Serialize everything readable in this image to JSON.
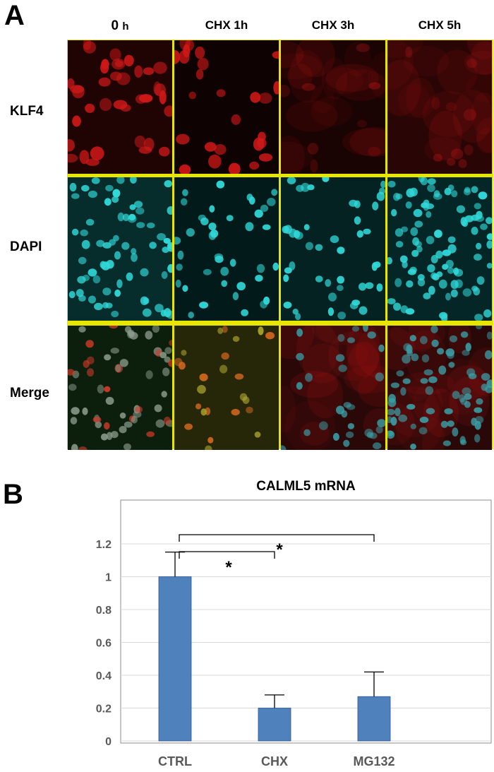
{
  "panel_a": {
    "letter": "A",
    "columns": [
      {
        "main": "0",
        "unit": "h"
      },
      {
        "main": "CHX 1h",
        "unit": ""
      },
      {
        "main": "CHX 3h",
        "unit": ""
      },
      {
        "main": "CHX 5h",
        "unit": ""
      }
    ],
    "rows": [
      "KLF4",
      "DAPI",
      "Merge"
    ],
    "colors": {
      "klf4": "#d01818",
      "dapi": "#30d8d8",
      "border": "#e6e600"
    }
  },
  "panel_b": {
    "letter": "B"
  },
  "chart_data": {
    "type": "bar",
    "title": "CALML5 mRNA",
    "categories": [
      "CTRL",
      "CHX",
      "MG132"
    ],
    "values": [
      1.0,
      0.2,
      0.27
    ],
    "errors": [
      0.15,
      0.08,
      0.15
    ],
    "ylim": [
      0,
      1.3
    ],
    "yticks": [
      "0",
      "0.2",
      "0.4",
      "0.6",
      "0.8",
      "1",
      "1.2"
    ],
    "xlabel": "",
    "ylabel": "",
    "grid": true,
    "bar_color": "#4f81bd",
    "annotations": [
      {
        "from": "CTRL",
        "to": "CHX",
        "label": "*"
      },
      {
        "from": "CTRL",
        "to": "MG132",
        "label": "*"
      }
    ]
  }
}
